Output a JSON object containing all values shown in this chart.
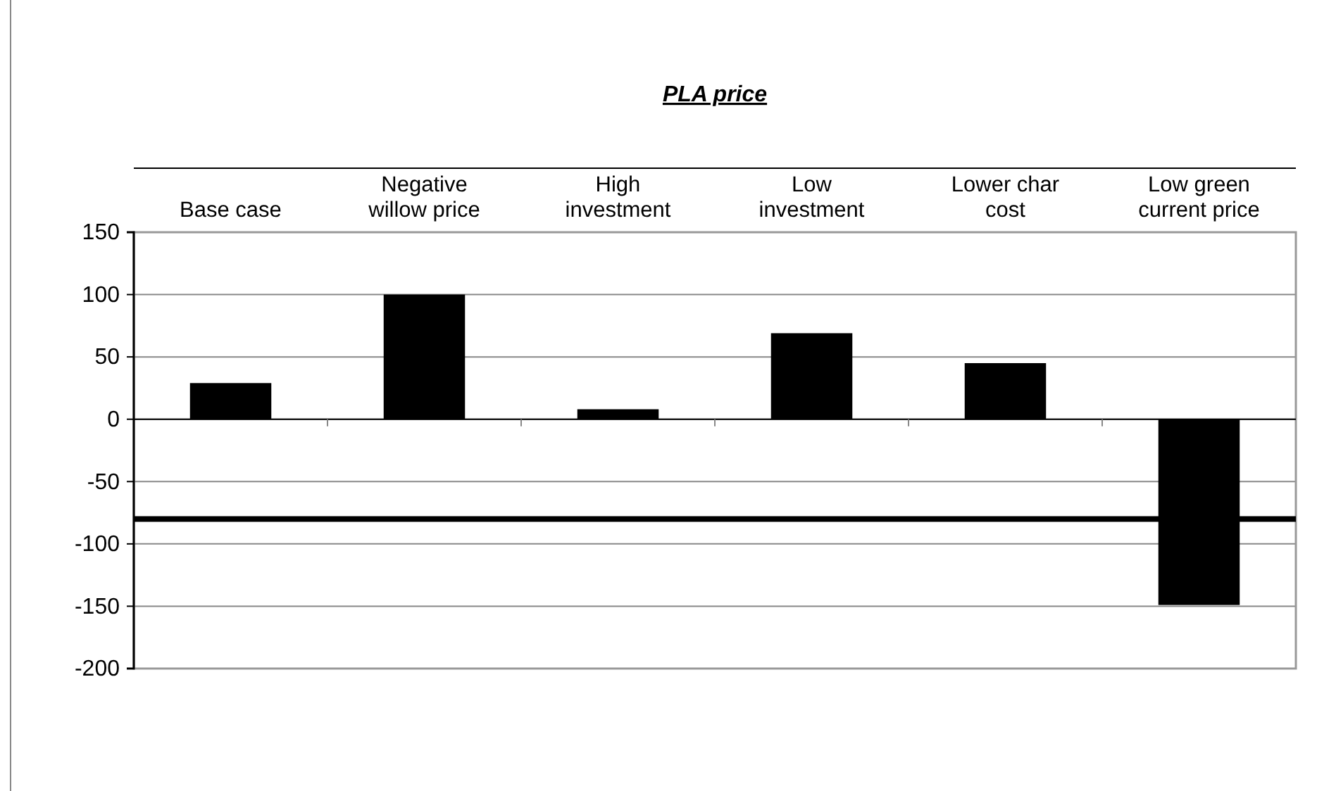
{
  "chart_data": {
    "type": "bar",
    "title": "PLA price",
    "categories": [
      "Base case",
      "Negative willow price",
      "High investment",
      "Low investment",
      "Lower char cost",
      "Low green current price"
    ],
    "values": [
      29,
      100,
      8,
      69,
      45,
      -149
    ],
    "color": "#000000",
    "ylim": [
      -200,
      150
    ],
    "yticks": [
      -200,
      -150,
      -100,
      -50,
      0,
      50,
      100,
      150
    ],
    "grid": "y",
    "ref_lines": [
      {
        "axis": "y",
        "value": -80,
        "color": "#000000",
        "line_style": "solid"
      }
    ]
  }
}
